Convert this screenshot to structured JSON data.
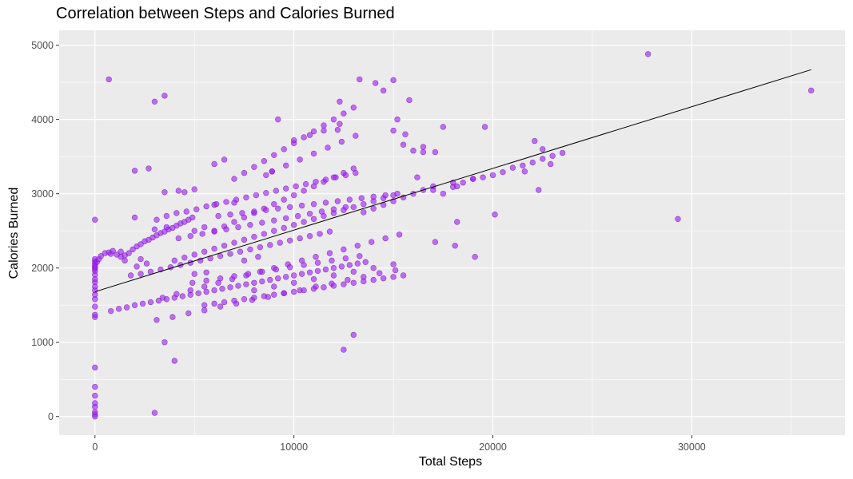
{
  "chart_data": {
    "type": "scatter",
    "title": "Correlation between Steps and Calories Burned",
    "xlabel": "Total Steps",
    "ylabel": "Calories Burned",
    "xlim": [
      -1800,
      37700
    ],
    "ylim": [
      -250,
      5200
    ],
    "x_ticks": [
      0,
      10000,
      20000,
      30000
    ],
    "y_ticks": [
      0,
      1000,
      2000,
      3000,
      4000,
      5000
    ],
    "x_tick_labels": [
      "0",
      "10000",
      "20000",
      "30000"
    ],
    "y_tick_labels": [
      "0",
      "1000",
      "2000",
      "3000",
      "4000",
      "5000"
    ],
    "grid": true,
    "colors": {
      "panel_background": "#ebebeb",
      "grid": "#ffffff",
      "point_fill": "#a020f0",
      "point_stroke": "#7a10c0",
      "trend_line": "#000000"
    },
    "trend_line": {
      "x": [
        0,
        36000
      ],
      "y": [
        1680,
        4670
      ]
    },
    "points_x": [
      0,
      0,
      0,
      0,
      0,
      0,
      0,
      0,
      0,
      0,
      0,
      0,
      0,
      0,
      0,
      0,
      0,
      0,
      0,
      0,
      0,
      0,
      0,
      0,
      0,
      0,
      100,
      200,
      300,
      500,
      700,
      900,
      1100,
      1300,
      1500,
      1700,
      1900,
      2100,
      2300,
      2500,
      2700,
      2900,
      3100,
      3300,
      3500,
      3700,
      3900,
      4100,
      4300,
      4500,
      4700,
      4900,
      800,
      1200,
      1600,
      2000,
      2400,
      2800,
      3200,
      3600,
      4000,
      4400,
      4800,
      5200,
      5600,
      6000,
      6400,
      6800,
      7200,
      7600,
      8000,
      8400,
      8800,
      9200,
      9600,
      10000,
      10400,
      10800,
      11200,
      11600,
      12000,
      12400,
      12800,
      13200,
      13600,
      1500,
      2300,
      3100,
      3900,
      4700,
      5500,
      6300,
      7100,
      7900,
      8700,
      9500,
      10300,
      11100,
      11900,
      12700,
      13500,
      14300,
      15100,
      2100,
      2600,
      3100,
      3600,
      4100,
      4600,
      5100,
      5600,
      6100,
      6600,
      7100,
      7600,
      8100,
      8600,
      9100,
      9600,
      10100,
      10600,
      11100,
      11600,
      12100,
      12600,
      13100,
      2000,
      2700,
      3400,
      4100,
      4800,
      5500,
      6200,
      6900,
      7600,
      8300,
      9000,
      9700,
      10400,
      11100,
      11800,
      12500,
      13200,
      13900,
      14600,
      15300,
      5000,
      5500,
      6000,
      6500,
      7000,
      7500,
      8000,
      8500,
      9000,
      9500,
      10000,
      10500,
      11000,
      11500,
      12000,
      12500,
      13000,
      6000,
      6500,
      7000,
      7500,
      8000,
      8500,
      9000,
      9500,
      10000,
      10500,
      11000,
      11500,
      12000,
      12500,
      13000,
      3000,
      3500,
      4000,
      4500,
      5000,
      5500,
      6000,
      6500,
      7000,
      7500,
      8000,
      8500,
      9000,
      9500,
      10000,
      10500,
      11000,
      11500,
      12000,
      12500,
      13000,
      13500,
      14000,
      14500,
      15000,
      4500,
      5000,
      5500,
      6000,
      6500,
      7000,
      7500,
      8000,
      8500,
      9000,
      9500,
      10000,
      10500,
      11000,
      11500,
      12000,
      12500,
      13000,
      13500,
      14000,
      14500,
      15000,
      15500,
      5000,
      5600,
      6200,
      6800,
      7400,
      8000,
      8600,
      9200,
      9800,
      10400,
      11000,
      11600,
      12200,
      12800,
      13400,
      14000,
      14600,
      15200,
      3500,
      4200,
      4900,
      5600,
      6300,
      7000,
      7700,
      8400,
      9100,
      9800,
      10500,
      11200,
      11900,
      12600,
      13300,
      800,
      1300,
      1800,
      2300,
      2800,
      3300,
      3800,
      4300,
      4800,
      5300,
      5800,
      6300,
      6800,
      7300,
      7800,
      8300,
      8800,
      9300,
      9800,
      10300,
      10800,
      11300,
      11800,
      3000,
      3600,
      4200,
      4800,
      5400,
      6000,
      6600,
      7200,
      7800,
      8400,
      9000,
      9600,
      10200,
      10800,
      11400,
      12000,
      12600,
      6000,
      7000,
      8000,
      9000,
      10000,
      11000,
      12000,
      13000,
      14000,
      15000,
      7500,
      8200,
      8900,
      9600,
      10300,
      11000,
      11700,
      12400,
      13100,
      12200,
      12300,
      13300,
      14100,
      15000,
      15800,
      12300,
      14500,
      15200,
      15500,
      16500,
      17000,
      17500,
      18000,
      18200,
      18500,
      19000,
      19500,
      20000,
      20500,
      21000,
      21500,
      22000,
      22500,
      23000,
      23500,
      16000,
      16500,
      17100,
      18100,
      18200,
      19100,
      20100,
      21600,
      22100,
      22500,
      22900,
      17100,
      16200,
      17500,
      15600,
      15000,
      19600,
      22300,
      27800,
      29300,
      36000,
      700,
      2000,
      3000,
      3500,
      4000,
      12500,
      13000,
      13500,
      14000,
      14500,
      15000,
      15500,
      16000,
      16500,
      17000,
      18000,
      19000,
      8600,
      8900,
      9200,
      10000,
      10800,
      11500
    ],
    "points_y": [
      0,
      30,
      60,
      130,
      180,
      280,
      400,
      660,
      1340,
      1370,
      1480,
      1580,
      1640,
      1700,
      1750,
      1810,
      1850,
      1910,
      1960,
      1990,
      2010,
      2030,
      2060,
      2090,
      2120,
      2650,
      2080,
      2120,
      2160,
      2200,
      2210,
      2230,
      2180,
      2150,
      2170,
      2200,
      2250,
      2290,
      2320,
      2360,
      2380,
      2410,
      2440,
      2470,
      2490,
      2520,
      2540,
      2570,
      2600,
      2620,
      2650,
      2680,
      1420,
      1450,
      1470,
      1500,
      1520,
      1540,
      1560,
      1580,
      1600,
      1620,
      1640,
      1660,
      1680,
      1700,
      1720,
      1740,
      1760,
      1780,
      1800,
      1820,
      1840,
      1860,
      1880,
      1900,
      1920,
      1940,
      1960,
      1980,
      2000,
      2020,
      2040,
      2060,
      2080,
      2100,
      2120,
      1300,
      1340,
      1390,
      1430,
      1480,
      1520,
      1570,
      1610,
      1660,
      1700,
      1750,
      1790,
      1840,
      1880,
      1930,
      1970,
      2020,
      2060,
      2650,
      2700,
      2740,
      2760,
      2790,
      2830,
      2860,
      2890,
      2920,
      2950,
      2980,
      3010,
      3040,
      3070,
      3100,
      3130,
      3160,
      3190,
      3220,
      3250,
      3280,
      3310,
      3340,
      1600,
      1650,
      1700,
      1750,
      1800,
      1850,
      1900,
      1950,
      2000,
      2050,
      2100,
      2150,
      2200,
      2250,
      2300,
      2350,
      2400,
      2450,
      2500,
      2550,
      2500,
      2560,
      2620,
      2680,
      2740,
      2800,
      2860,
      2920,
      2980,
      3040,
      3100,
      3160,
      3220,
      3280,
      3340,
      3400,
      3460,
      3200,
      3280,
      3360,
      3440,
      3520,
      3600,
      3680,
      3760,
      3840,
      3920,
      4000,
      4080,
      4160,
      4240,
      4320,
      2100,
      2140,
      2180,
      2220,
      2260,
      2300,
      2340,
      2380,
      2420,
      2460,
      2500,
      2540,
      2580,
      2620,
      2660,
      2700,
      2740,
      2780,
      2820,
      2860,
      2900,
      2940,
      2980,
      3020,
      3060,
      1500,
      1520,
      1540,
      1560,
      1580,
      1600,
      1620,
      1640,
      1660,
      1680,
      1700,
      1720,
      1740,
      1760,
      1780,
      1800,
      1820,
      1840,
      1860,
      1880,
      1900,
      1920,
      1940,
      2700,
      2720,
      2740,
      2760,
      2780,
      2800,
      2820,
      2840,
      2860,
      2880,
      2900,
      2920,
      2940,
      2960,
      2980,
      3000,
      3020,
      3040,
      1800,
      1830,
      1860,
      1890,
      1920,
      1950,
      1980,
      2010,
      2040,
      2070,
      2100,
      2130,
      2160,
      2190,
      2220,
      1900,
      1920,
      1950,
      1980,
      2010,
      2040,
      2070,
      2100,
      2130,
      2160,
      2190,
      2220,
      2250,
      2280,
      2310,
      2340,
      2370,
      2400,
      2430,
      2460,
      2490,
      2520,
      2550,
      2400,
      2430,
      2460,
      2490,
      2520,
      2550,
      2580,
      2610,
      2640,
      2670,
      2700,
      2730,
      2760,
      2790,
      2820,
      2850,
      2880,
      1700,
      1750,
      1800,
      1850,
      1900,
      1950,
      2000,
      2050,
      2100,
      2150,
      3300,
      3380,
      3460,
      3540,
      3620,
      3700,
      3780,
      3860,
      3940,
      4540,
      4490,
      4530,
      4260,
      4240,
      4390,
      4000,
      3660,
      3560,
      3050,
      3000,
      3090,
      3100,
      3150,
      3200,
      3220,
      3250,
      3290,
      3350,
      3380,
      3420,
      3470,
      3510,
      3550,
      3580,
      3630,
      2350,
      2300,
      2620,
      2150,
      2720,
      3300,
      3710,
      3600,
      3400,
      3560,
      3220,
      3900,
      3800,
      3850,
      3900,
      3050,
      4880,
      2660,
      4390,
      4540,
      2680,
      50,
      1000,
      750,
      900,
      1100,
      2750,
      2800,
      2850,
      2900,
      2950,
      3000,
      3050,
      3100,
      3150,
      3200,
      3250,
      3300,
      4000,
      3720,
      3790,
      3850,
      3900,
      3960
    ]
  }
}
